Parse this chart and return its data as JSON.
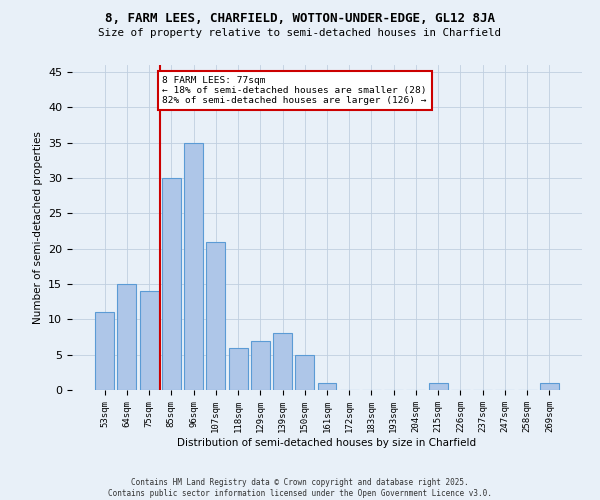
{
  "title1": "8, FARM LEES, CHARFIELD, WOTTON-UNDER-EDGE, GL12 8JA",
  "title2": "Size of property relative to semi-detached houses in Charfield",
  "xlabel": "Distribution of semi-detached houses by size in Charfield",
  "ylabel": "Number of semi-detached properties",
  "bar_labels": [
    "53sqm",
    "64sqm",
    "75sqm",
    "85sqm",
    "96sqm",
    "107sqm",
    "118sqm",
    "129sqm",
    "139sqm",
    "150sqm",
    "161sqm",
    "172sqm",
    "183sqm",
    "193sqm",
    "204sqm",
    "215sqm",
    "226sqm",
    "237sqm",
    "247sqm",
    "258sqm",
    "269sqm"
  ],
  "bar_values": [
    11,
    15,
    14,
    30,
    35,
    21,
    6,
    7,
    8,
    5,
    1,
    0,
    0,
    0,
    0,
    1,
    0,
    0,
    0,
    0,
    1
  ],
  "bar_color": "#aec6e8",
  "bar_edge_color": "#5b9bd5",
  "vline_color": "#cc0000",
  "annotation_text": "8 FARM LEES: 77sqm\n← 18% of semi-detached houses are smaller (28)\n82% of semi-detached houses are larger (126) →",
  "annotation_box_color": "#ffffff",
  "annotation_box_edge": "#cc0000",
  "ylim": [
    0,
    46
  ],
  "yticks": [
    0,
    5,
    10,
    15,
    20,
    25,
    30,
    35,
    40,
    45
  ],
  "grid_color": "#c0cfe0",
  "background_color": "#e8f0f8",
  "footer_text": "Contains HM Land Registry data © Crown copyright and database right 2025.\nContains public sector information licensed under the Open Government Licence v3.0."
}
